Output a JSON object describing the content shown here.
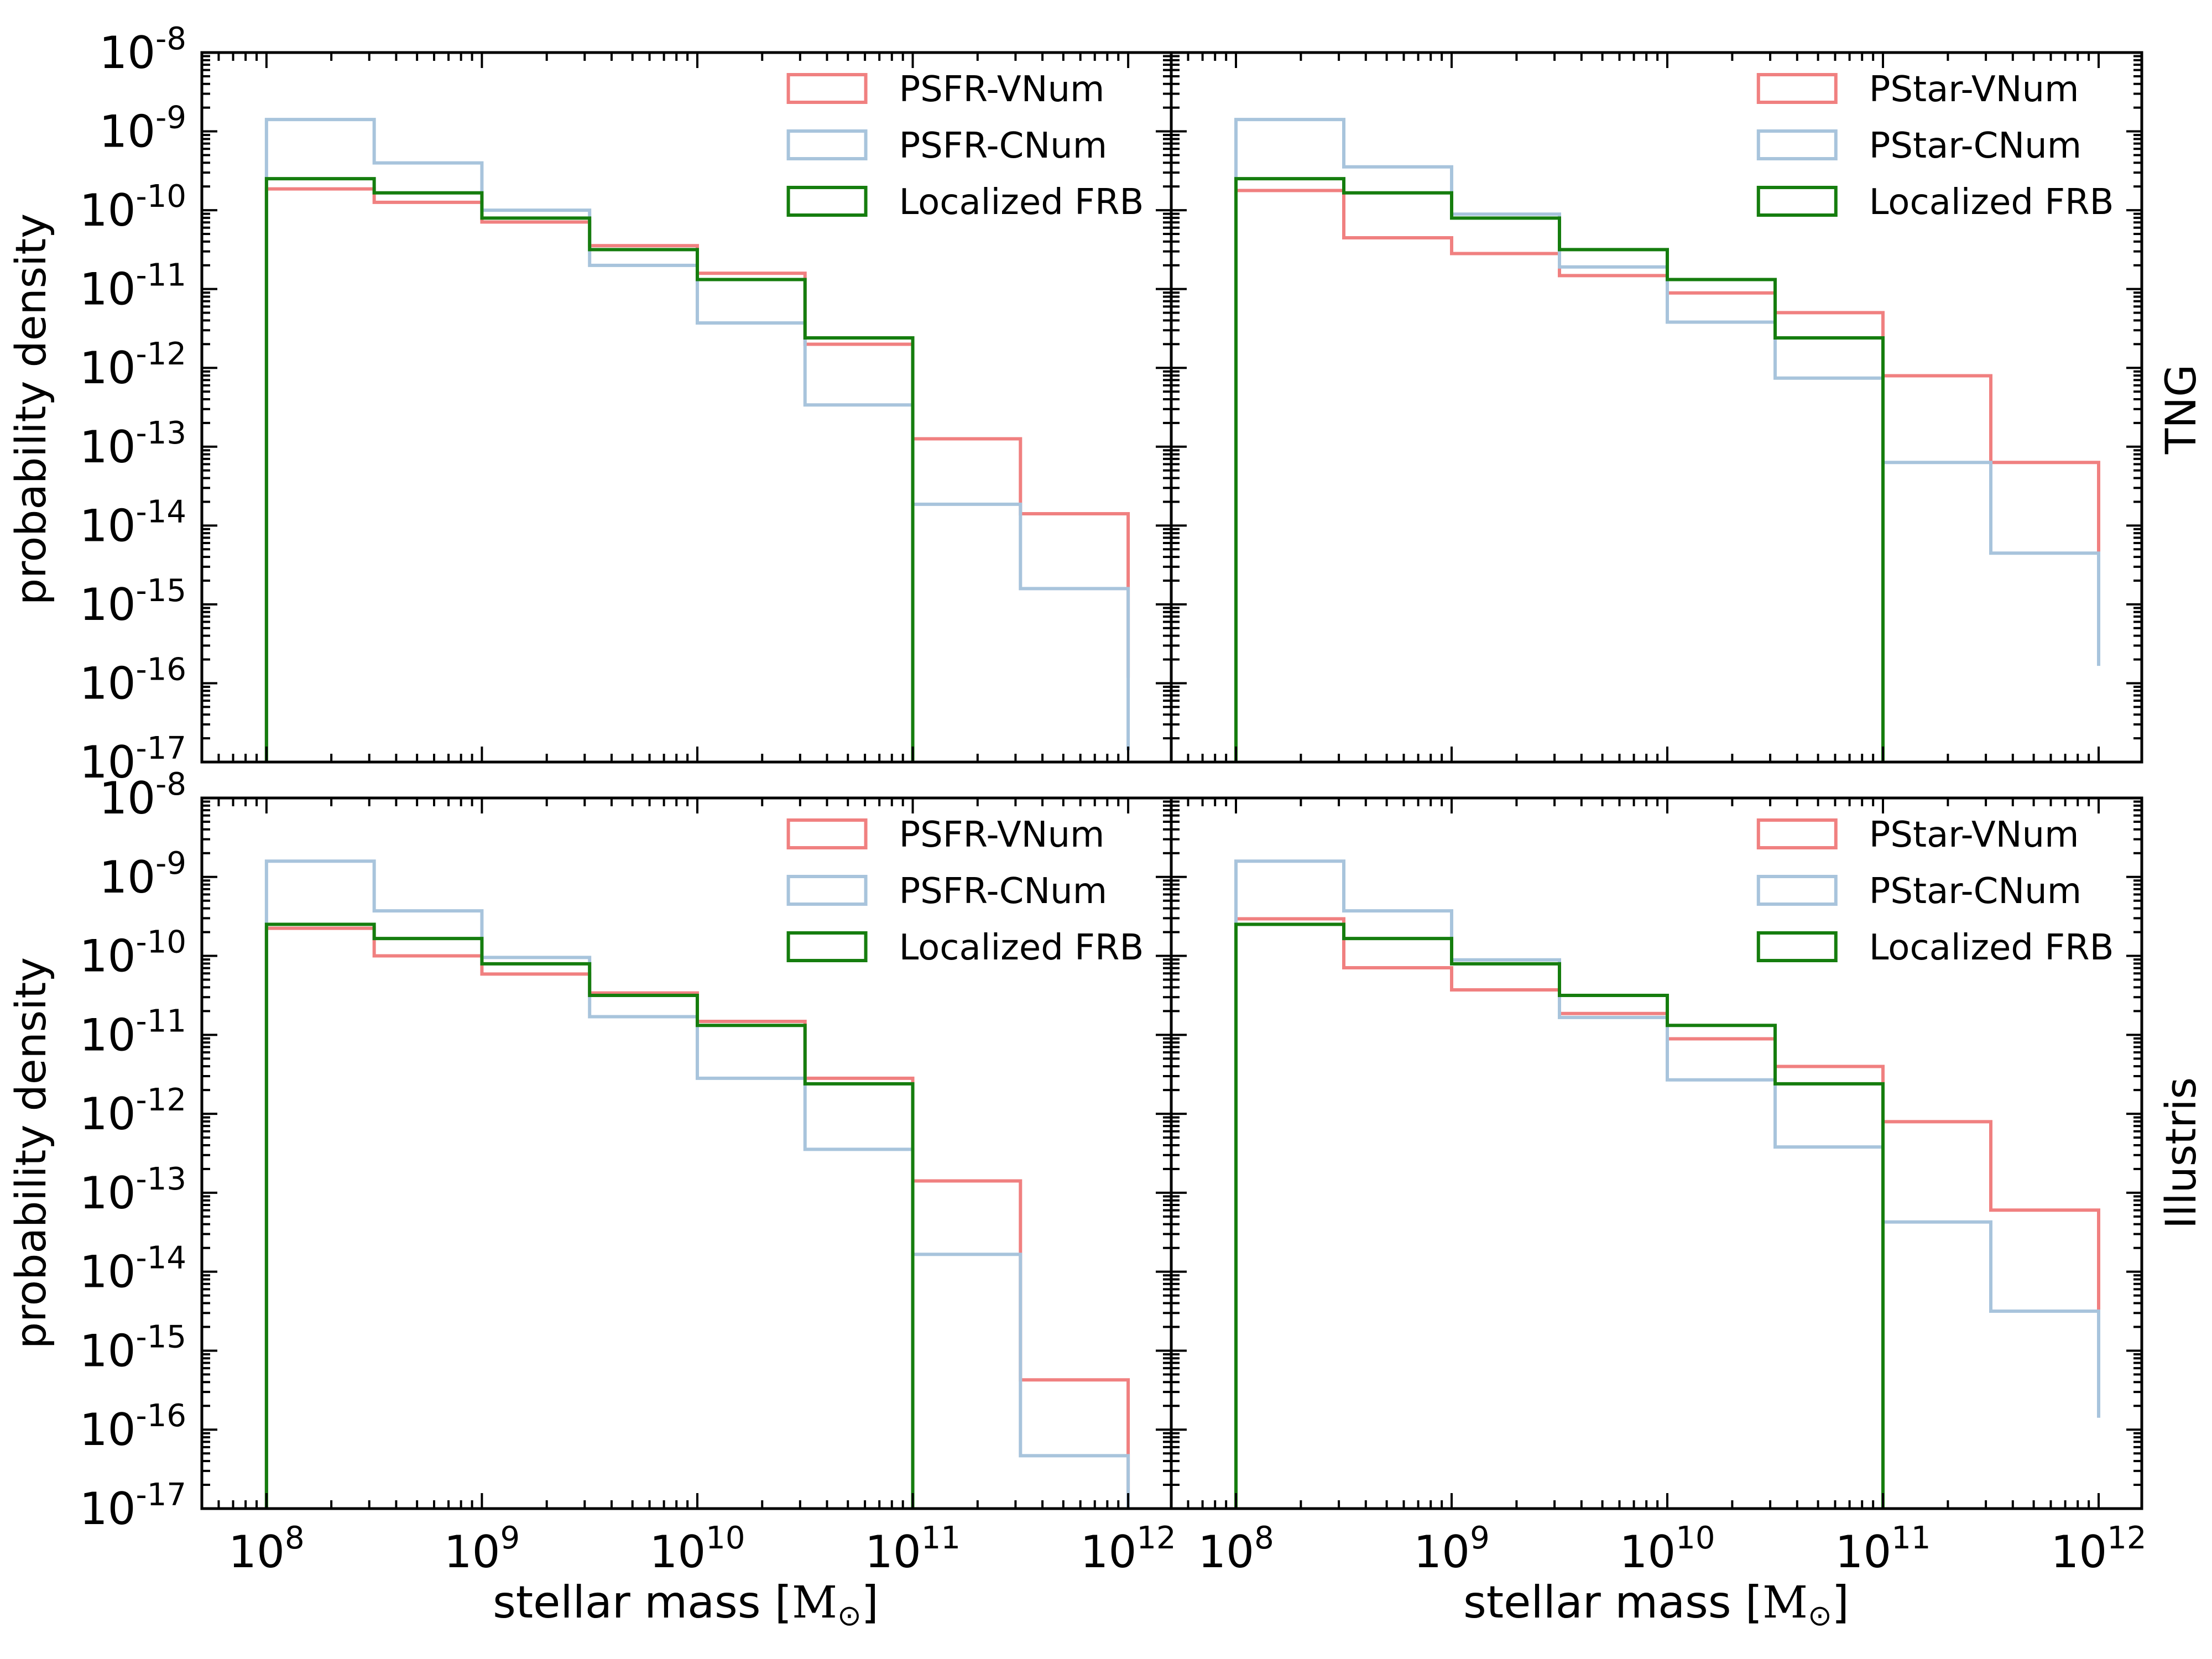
{
  "figure": {
    "ylabel": "probability density",
    "xlabel_prefix": "stellar mass [",
    "xlabel_unit": "M",
    "xlabel_sub": "⊙",
    "xlabel_suffix": "]",
    "row_labels": [
      "TNG",
      "Illustris"
    ]
  },
  "colors": {
    "red": "#f08080",
    "blue": "#a8c4dc",
    "green": "#157d0e"
  },
  "chart_data": [
    {
      "type": "histogram-step",
      "panel": "TNG, SFR-weighted",
      "xscale": "log",
      "yscale": "log",
      "xlim_log10": [
        7.7,
        12.2
      ],
      "ylim_log10": [
        -17,
        -8
      ],
      "bin_edges_log10": [
        8,
        8.5,
        9,
        9.5,
        10,
        10.5,
        11,
        11.5,
        12
      ],
      "x_tick_labels": [
        {
          "base": "10",
          "exp": "8"
        },
        {
          "base": "10",
          "exp": "9"
        },
        {
          "base": "10",
          "exp": "10"
        },
        {
          "base": "10",
          "exp": "11"
        },
        {
          "base": "10",
          "exp": "12"
        }
      ],
      "y_tick_labels": [
        {
          "base": "10",
          "exp": "-8"
        },
        {
          "base": "10",
          "exp": "-9"
        },
        {
          "base": "10",
          "exp": "-10"
        },
        {
          "base": "10",
          "exp": "-11"
        },
        {
          "base": "10",
          "exp": "-12"
        },
        {
          "base": "10",
          "exp": "-13"
        },
        {
          "base": "10",
          "exp": "-14"
        },
        {
          "base": "10",
          "exp": "-15"
        },
        {
          "base": "10",
          "exp": "-16"
        },
        {
          "base": "10",
          "exp": "-17"
        }
      ],
      "legend_position": "top-right",
      "series": [
        {
          "name": "PSFR-VNum",
          "color": "red",
          "values_log10": [
            -9.73,
            -9.9,
            -10.15,
            -10.45,
            -10.8,
            -11.7,
            -12.9,
            -13.85,
            -15.93
          ]
        },
        {
          "name": "PSFR-CNum",
          "color": "blue",
          "values_log10": [
            -8.85,
            -9.4,
            -10.0,
            -10.7,
            -11.43,
            -12.47,
            -13.73,
            -14.8,
            -16.85
          ]
        },
        {
          "name": "Localized FRB",
          "color": "green",
          "values_log10": [
            -9.6,
            -9.78,
            -10.1,
            -10.5,
            -10.88,
            -11.62
          ]
        }
      ]
    },
    {
      "type": "histogram-step",
      "panel": "TNG, stellar-mass-weighted",
      "xscale": "log",
      "yscale": "log",
      "xlim_log10": [
        7.7,
        12.2
      ],
      "ylim_log10": [
        -17,
        -8
      ],
      "bin_edges_log10": [
        8,
        8.5,
        9,
        9.5,
        10,
        10.5,
        11,
        11.5,
        12
      ],
      "x_tick_labels": [
        {
          "base": "10",
          "exp": "8"
        },
        {
          "base": "10",
          "exp": "9"
        },
        {
          "base": "10",
          "exp": "10"
        },
        {
          "base": "10",
          "exp": "11"
        },
        {
          "base": "10",
          "exp": "12"
        }
      ],
      "legend_position": "top-right",
      "series": [
        {
          "name": "PStar-VNum",
          "color": "red",
          "values_log10": [
            -9.75,
            -10.35,
            -10.55,
            -10.83,
            -11.05,
            -11.3,
            -12.1,
            -13.2,
            -14.65
          ]
        },
        {
          "name": "PStar-CNum",
          "color": "blue",
          "values_log10": [
            -8.85,
            -9.45,
            -10.05,
            -10.72,
            -11.42,
            -12.13,
            -13.2,
            -14.35,
            -15.78
          ]
        },
        {
          "name": "Localized FRB",
          "color": "green",
          "values_log10": [
            -9.6,
            -9.78,
            -10.1,
            -10.5,
            -10.88,
            -11.62
          ]
        }
      ]
    },
    {
      "type": "histogram-step",
      "panel": "Illustris, SFR-weighted",
      "xscale": "log",
      "yscale": "log",
      "xlim_log10": [
        7.7,
        12.2
      ],
      "ylim_log10": [
        -17,
        -8
      ],
      "bin_edges_log10": [
        8,
        8.5,
        9,
        9.5,
        10,
        10.5,
        11,
        11.5,
        12
      ],
      "x_tick_labels": [
        {
          "base": "10",
          "exp": "8"
        },
        {
          "base": "10",
          "exp": "9"
        },
        {
          "base": "10",
          "exp": "10"
        },
        {
          "base": "10",
          "exp": "11"
        },
        {
          "base": "10",
          "exp": "12"
        }
      ],
      "y_tick_labels": [
        {
          "base": "10",
          "exp": "-8"
        },
        {
          "base": "10",
          "exp": "-9"
        },
        {
          "base": "10",
          "exp": "-10"
        },
        {
          "base": "10",
          "exp": "-11"
        },
        {
          "base": "10",
          "exp": "-12"
        },
        {
          "base": "10",
          "exp": "-13"
        },
        {
          "base": "10",
          "exp": "-14"
        },
        {
          "base": "10",
          "exp": "-15"
        },
        {
          "base": "10",
          "exp": "-16"
        },
        {
          "base": "10",
          "exp": "-17"
        }
      ],
      "legend_position": "top-right",
      "series": [
        {
          "name": "PSFR-VNum",
          "color": "red",
          "values_log10": [
            -9.65,
            -10.0,
            -10.23,
            -10.47,
            -10.83,
            -11.55,
            -12.85,
            -15.37
          ]
        },
        {
          "name": "PSFR-CNum",
          "color": "blue",
          "values_log10": [
            -8.8,
            -9.43,
            -10.02,
            -10.77,
            -11.55,
            -12.45,
            -13.78,
            -16.33
          ]
        },
        {
          "name": "Localized FRB",
          "color": "green",
          "values_log10": [
            -9.6,
            -9.78,
            -10.1,
            -10.5,
            -10.88,
            -11.62
          ]
        }
      ]
    },
    {
      "type": "histogram-step",
      "panel": "Illustris, stellar-mass-weighted",
      "xscale": "log",
      "yscale": "log",
      "xlim_log10": [
        7.7,
        12.2
      ],
      "ylim_log10": [
        -17,
        -8
      ],
      "bin_edges_log10": [
        8,
        8.5,
        9,
        9.5,
        10,
        10.5,
        11,
        11.5,
        12
      ],
      "x_tick_labels": [
        {
          "base": "10",
          "exp": "8"
        },
        {
          "base": "10",
          "exp": "9"
        },
        {
          "base": "10",
          "exp": "10"
        },
        {
          "base": "10",
          "exp": "11"
        },
        {
          "base": "10",
          "exp": "12"
        }
      ],
      "legend_position": "top-right",
      "series": [
        {
          "name": "PStar-VNum",
          "color": "red",
          "values_log10": [
            -9.53,
            -10.15,
            -10.43,
            -10.73,
            -11.05,
            -11.4,
            -12.1,
            -13.22,
            -14.6
          ]
        },
        {
          "name": "PStar-CNum",
          "color": "blue",
          "values_log10": [
            -8.8,
            -9.43,
            -10.05,
            -10.78,
            -11.57,
            -12.42,
            -13.37,
            -14.5,
            -15.85
          ]
        },
        {
          "name": "Localized FRB",
          "color": "green",
          "values_log10": [
            -9.6,
            -9.78,
            -10.1,
            -10.5,
            -10.88,
            -11.62
          ]
        }
      ]
    }
  ]
}
